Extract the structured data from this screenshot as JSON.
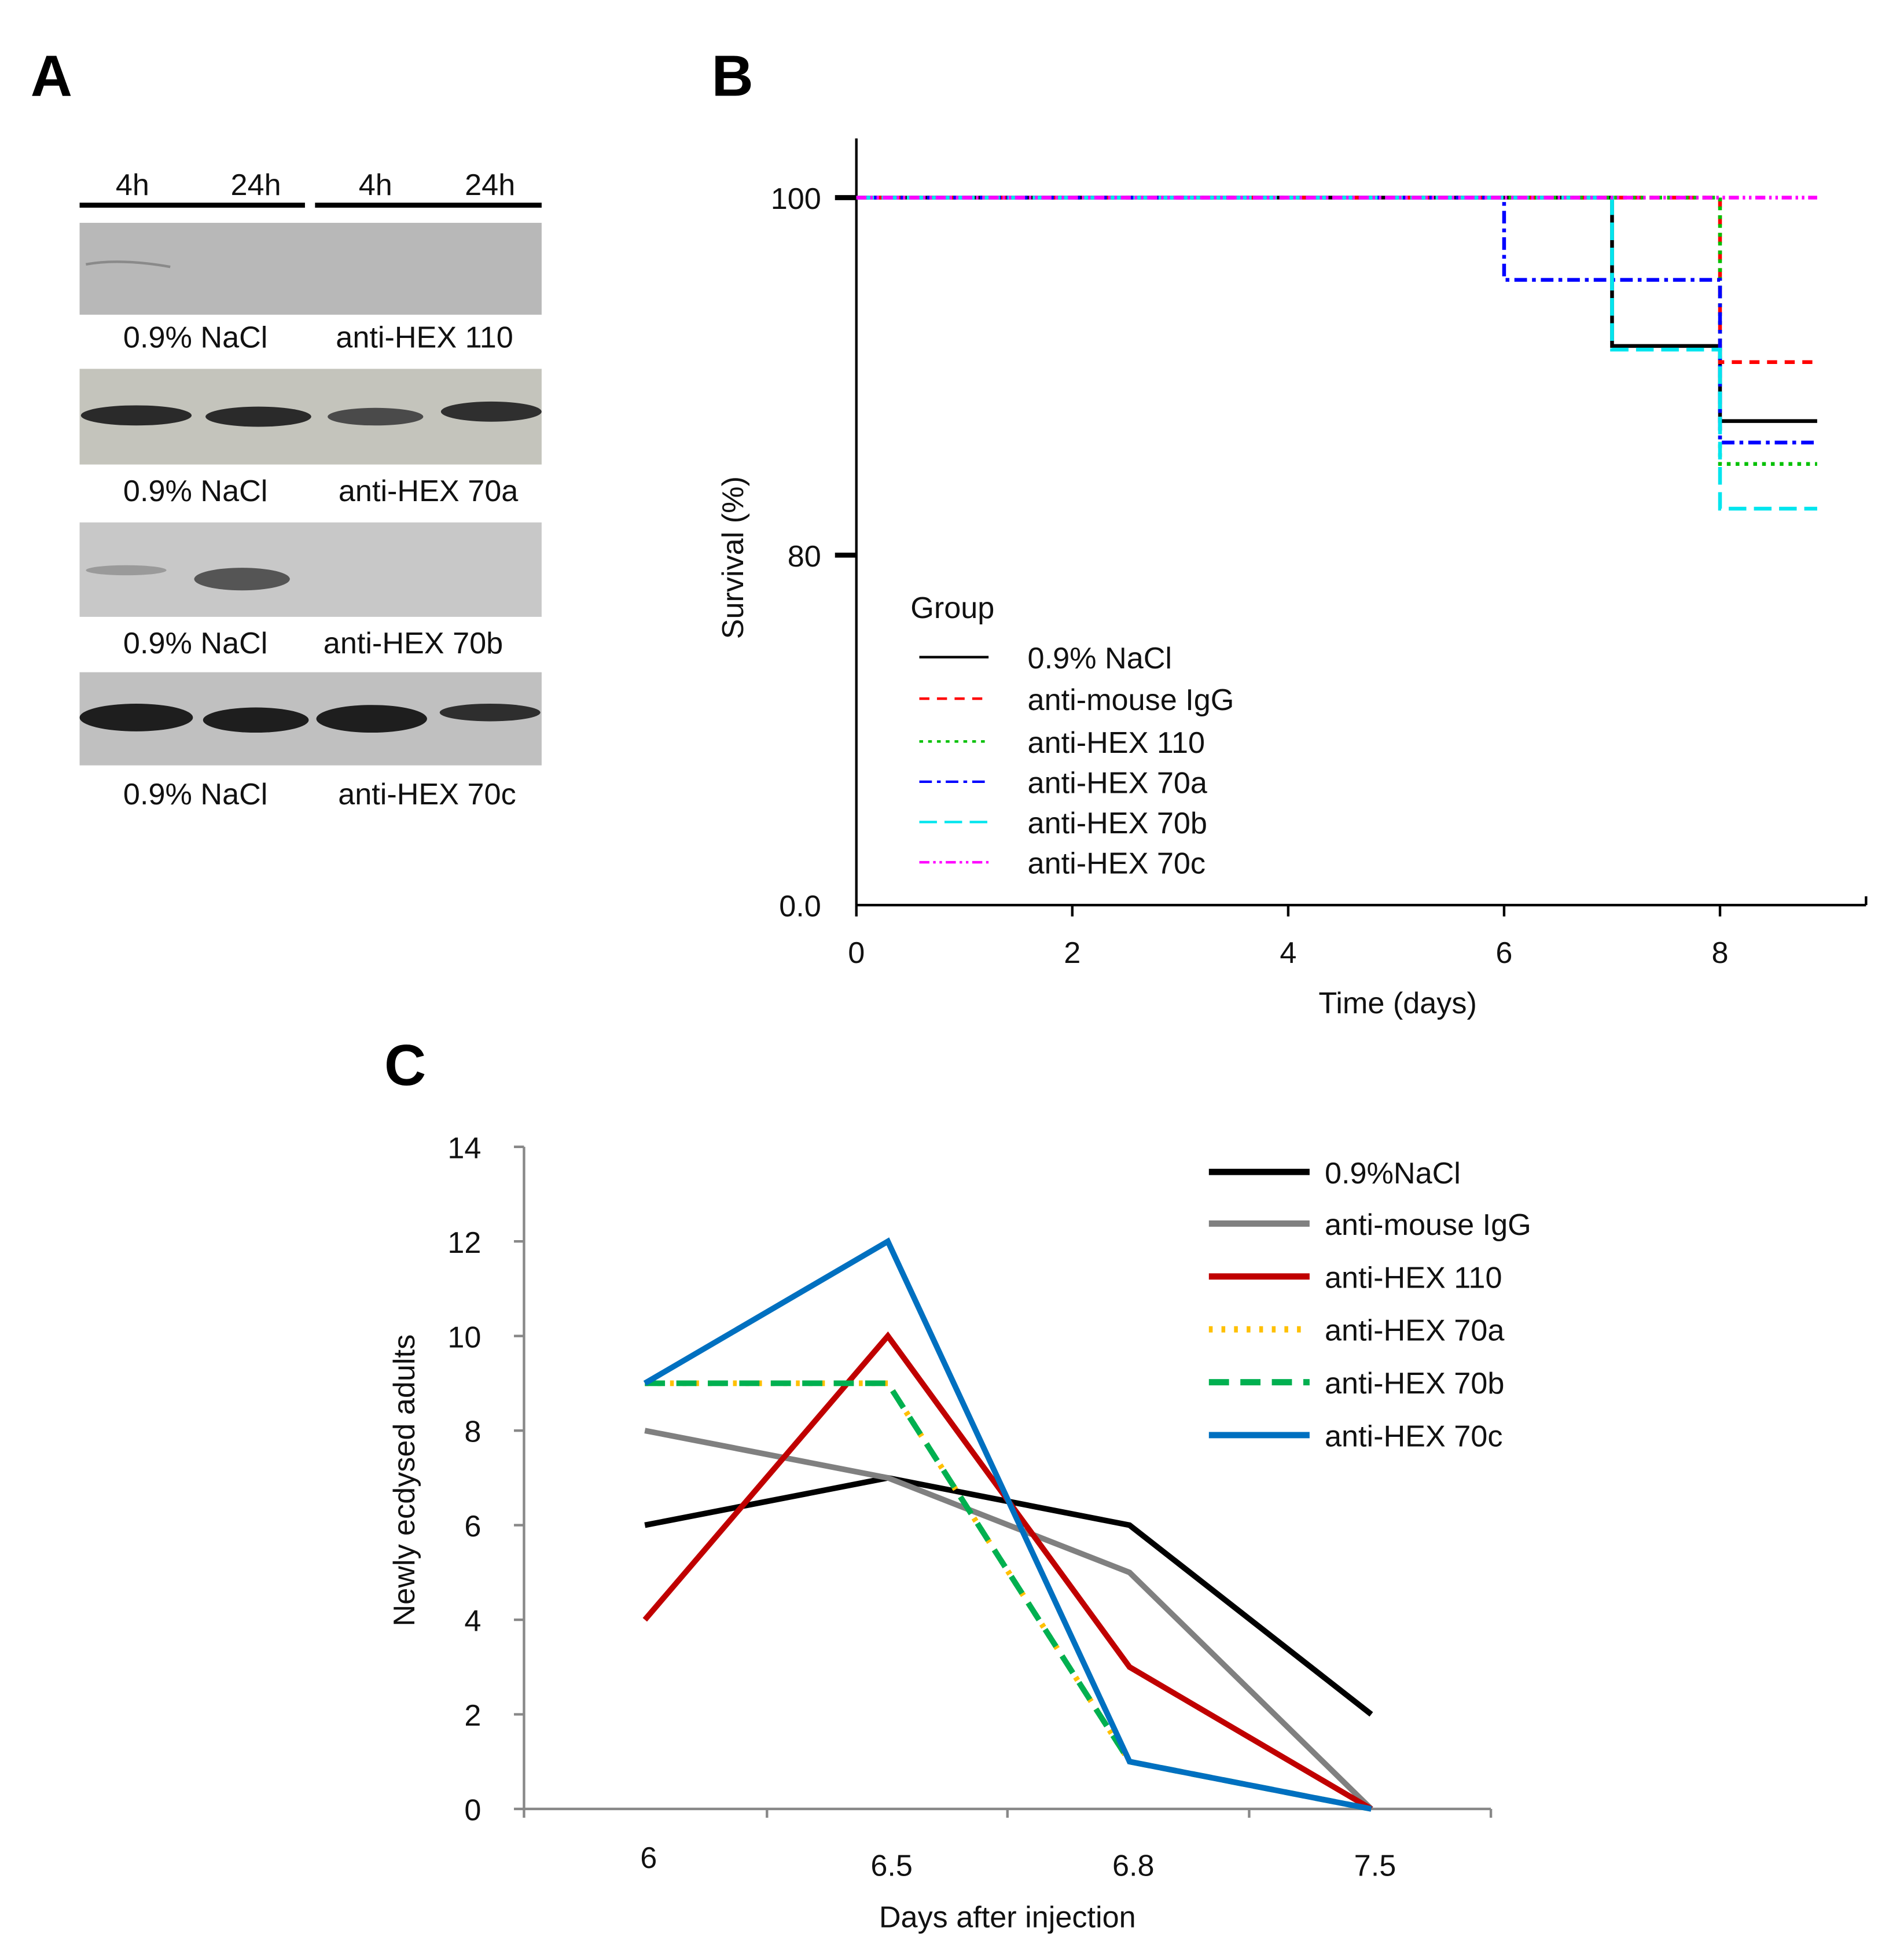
{
  "panel_letters": {
    "a": "A",
    "b": "B",
    "c": "C"
  },
  "blot": {
    "time_labels": [
      "4h",
      "24h",
      "4h",
      "24h"
    ],
    "rows": [
      {
        "left": "0.9% NaCl",
        "right": "anti-HEX 110"
      },
      {
        "left": "0.9% NaCl",
        "right": "anti-HEX 70a"
      },
      {
        "left": "0.9% NaCl",
        "right": "anti-HEX 70b"
      },
      {
        "left": "0.9% NaCl",
        "right": "anti-HEX 70c"
      }
    ]
  },
  "chart_data": [
    {
      "type": "line",
      "subtype": "kaplan-meier-step",
      "xlabel": "Time (days)",
      "ylabel": "Survival (%)",
      "xticks": [
        "0",
        "2",
        "4",
        "6",
        "8"
      ],
      "yticks": [
        "0.0",
        "80",
        "100"
      ],
      "xlim": [
        0,
        9.3
      ],
      "ylim": [
        0,
        100
      ],
      "y_axis_break": true,
      "legend_title": "Group",
      "legend_position": "bottom-left",
      "series": [
        {
          "name": "0.9% NaCl",
          "color": "#000000",
          "dash": "solid",
          "steps": [
            [
              0,
              100
            ],
            [
              7,
              91.7
            ],
            [
              8,
              87.5
            ],
            [
              8.9,
              87.5
            ]
          ]
        },
        {
          "name": "anti-mouse IgG",
          "color": "#ff0000",
          "dash": "dashed",
          "steps": [
            [
              0,
              100
            ],
            [
              8,
              90.8
            ],
            [
              8.9,
              90.8
            ]
          ]
        },
        {
          "name": "anti-HEX 110",
          "color": "#00c000",
          "dash": "dotted",
          "steps": [
            [
              0,
              100
            ],
            [
              8,
              85.1
            ],
            [
              8.9,
              85.1
            ]
          ]
        },
        {
          "name": "anti-HEX 70a",
          "color": "#0000ff",
          "dash": "dash-dot",
          "steps": [
            [
              0,
              100
            ],
            [
              6,
              95.4
            ],
            [
              8,
              86.3
            ],
            [
              8.9,
              86.3
            ]
          ]
        },
        {
          "name": "anti-HEX 70b",
          "color": "#00e5ee",
          "dash": "long-dash",
          "steps": [
            [
              0,
              100
            ],
            [
              7,
              91.5
            ],
            [
              8,
              82.6
            ],
            [
              8.9,
              82.6
            ]
          ]
        },
        {
          "name": "anti-HEX 70c",
          "color": "#ff00ff",
          "dash": "dash-dot-dot",
          "steps": [
            [
              0,
              100
            ],
            [
              8.9,
              100
            ]
          ]
        }
      ]
    },
    {
      "type": "line",
      "xlabel": "Days after injection",
      "ylabel": "Newly ecdysed adults",
      "categories": [
        "6",
        "6.5",
        "6.8",
        "7.5"
      ],
      "yticks": [
        "0",
        "2",
        "4",
        "6",
        "8",
        "10",
        "12",
        "14"
      ],
      "ylim": [
        0,
        14
      ],
      "legend_position": "top-right",
      "series": [
        {
          "name": "0.9%NaCl",
          "color": "#000000",
          "dash": "solid",
          "values": [
            6,
            7,
            6,
            2
          ]
        },
        {
          "name": "anti-mouse IgG",
          "color": "#808080",
          "dash": "solid",
          "values": [
            8,
            7,
            5,
            0
          ]
        },
        {
          "name": "anti-HEX 110",
          "color": "#c00000",
          "dash": "solid",
          "values": [
            4,
            10,
            3,
            0
          ]
        },
        {
          "name": "anti-HEX 70a",
          "color": "#ffc000",
          "dash": "dotted",
          "values": [
            9,
            9,
            1,
            0
          ]
        },
        {
          "name": "anti-HEX 70b",
          "color": "#00b050",
          "dash": "dashed",
          "values": [
            9,
            9,
            1,
            0
          ]
        },
        {
          "name": "anti-HEX 70c",
          "color": "#0070c0",
          "dash": "solid",
          "values": [
            9,
            12,
            1,
            0
          ]
        }
      ]
    }
  ]
}
